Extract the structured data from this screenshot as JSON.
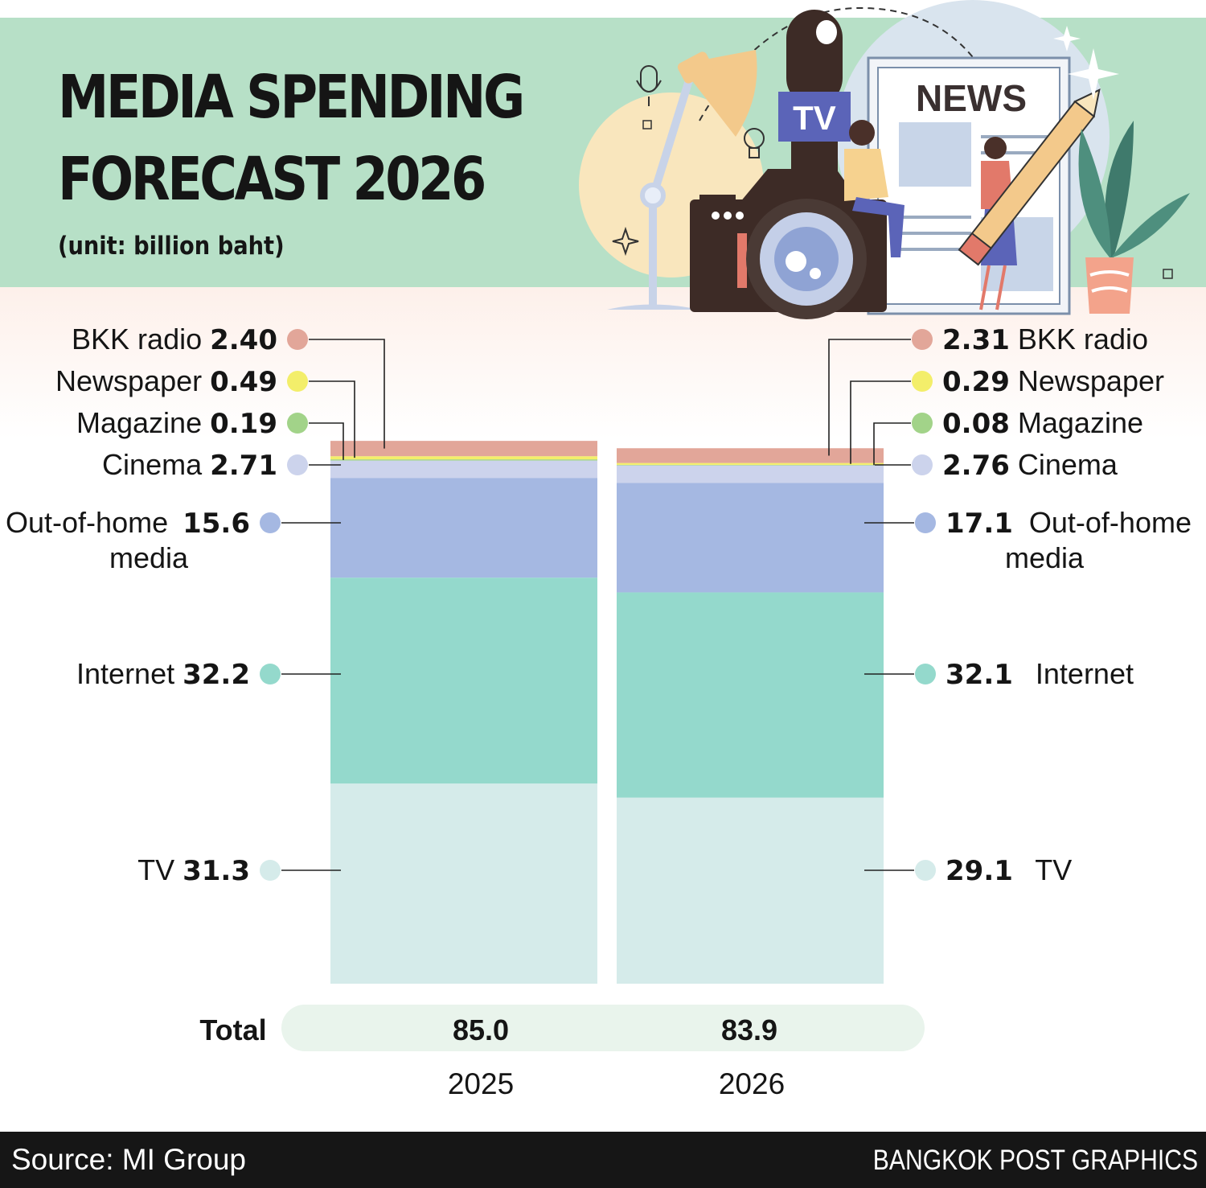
{
  "title_line1": "MEDIA SPENDING",
  "title_line2": "FORECAST 2026",
  "subtitle": "(unit: billion baht)",
  "illustration": {
    "tv_sign": "TV",
    "news_sign": "NEWS",
    "icons": [
      "microphone-icon",
      "desk-lamp-icon",
      "lightbulb-icon",
      "camera-icon",
      "newspaper-icon",
      "pencil-icon",
      "plant-icon",
      "sparkle-icon"
    ]
  },
  "chart_data": {
    "type": "bar",
    "stacked": true,
    "categories": [
      "2025",
      "2026"
    ],
    "series": [
      {
        "name": "TV",
        "values": [
          31.3,
          29.1
        ],
        "labels": [
          "31.3",
          "29.1"
        ],
        "color": "#d5ebea"
      },
      {
        "name": "Internet",
        "values": [
          32.2,
          32.1
        ],
        "labels": [
          "32.2",
          "32.1"
        ],
        "color": "#94d9cc"
      },
      {
        "name": "Out-of-home media",
        "values": [
          15.6,
          17.1
        ],
        "labels": [
          "15.6",
          "17.1"
        ],
        "color": "#a5b8e2"
      },
      {
        "name": "Cinema",
        "values": [
          2.71,
          2.76
        ],
        "labels": [
          "2.71",
          "2.76"
        ],
        "color": "#ccd3ec"
      },
      {
        "name": "Magazine",
        "values": [
          0.19,
          0.08
        ],
        "labels": [
          "0.19",
          "0.08"
        ],
        "color": "#a2d389"
      },
      {
        "name": "Newspaper",
        "values": [
          0.49,
          0.29
        ],
        "labels": [
          "0.49",
          "0.29"
        ],
        "color": "#f3ee6a"
      },
      {
        "name": "BKK radio",
        "values": [
          2.4,
          2.31
        ],
        "labels": [
          "2.40",
          "2.31"
        ],
        "color": "#e2a699"
      }
    ],
    "totals_label": "Total",
    "totals": [
      "85.0",
      "83.9"
    ],
    "legend": "labels beside each bar"
  },
  "footer": {
    "source": "Source: MI Group",
    "credit": "BANGKOK POST GRAPHICS"
  }
}
